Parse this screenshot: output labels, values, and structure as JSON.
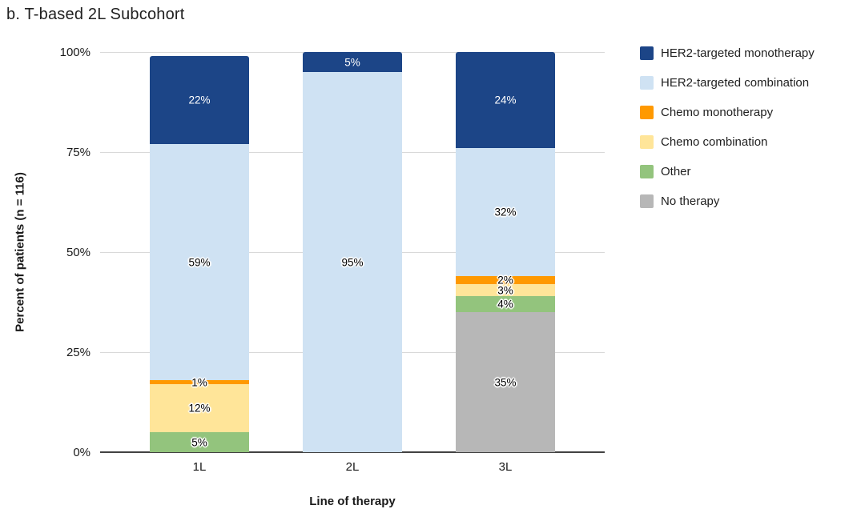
{
  "title": "b. T-based 2L Subcohort",
  "chart_data": {
    "type": "bar",
    "stacked": true,
    "title": "b. T-based 2L Subcohort",
    "xlabel": "Line of therapy",
    "ylabel": "Percent of patients (n = 116)",
    "categories": [
      "1L",
      "2L",
      "3L"
    ],
    "series": [
      {
        "name": "HER2-targeted monotherapy",
        "color": "#1C4587",
        "label_color": "#FFFFFF",
        "values": [
          22,
          5,
          24
        ]
      },
      {
        "name": "HER2-targeted combination",
        "color": "#CFE2F3",
        "label_color": "#000000",
        "values": [
          59,
          95,
          32
        ]
      },
      {
        "name": "Chemo monotherapy",
        "color": "#FF9900",
        "label_color": "#000000",
        "values": [
          1,
          0,
          2
        ]
      },
      {
        "name": "Chemo combination",
        "color": "#FFE599",
        "label_color": "#000000",
        "values": [
          12,
          0,
          3
        ]
      },
      {
        "name": "Other",
        "color": "#93C47D",
        "label_color": "#000000",
        "values": [
          5,
          0,
          4
        ]
      },
      {
        "name": "No therapy",
        "color": "#B7B7B7",
        "label_color": "#000000",
        "values": [
          0,
          0,
          35
        ]
      }
    ],
    "value_suffix": "%",
    "y_ticks": [
      "100%",
      "75%",
      "50%",
      "25%",
      "0%"
    ],
    "ylim": [
      0,
      100
    ],
    "grid": true,
    "legend_position": "right",
    "gridline_color": "#D9D9D9",
    "baseline_color": "#424242"
  }
}
